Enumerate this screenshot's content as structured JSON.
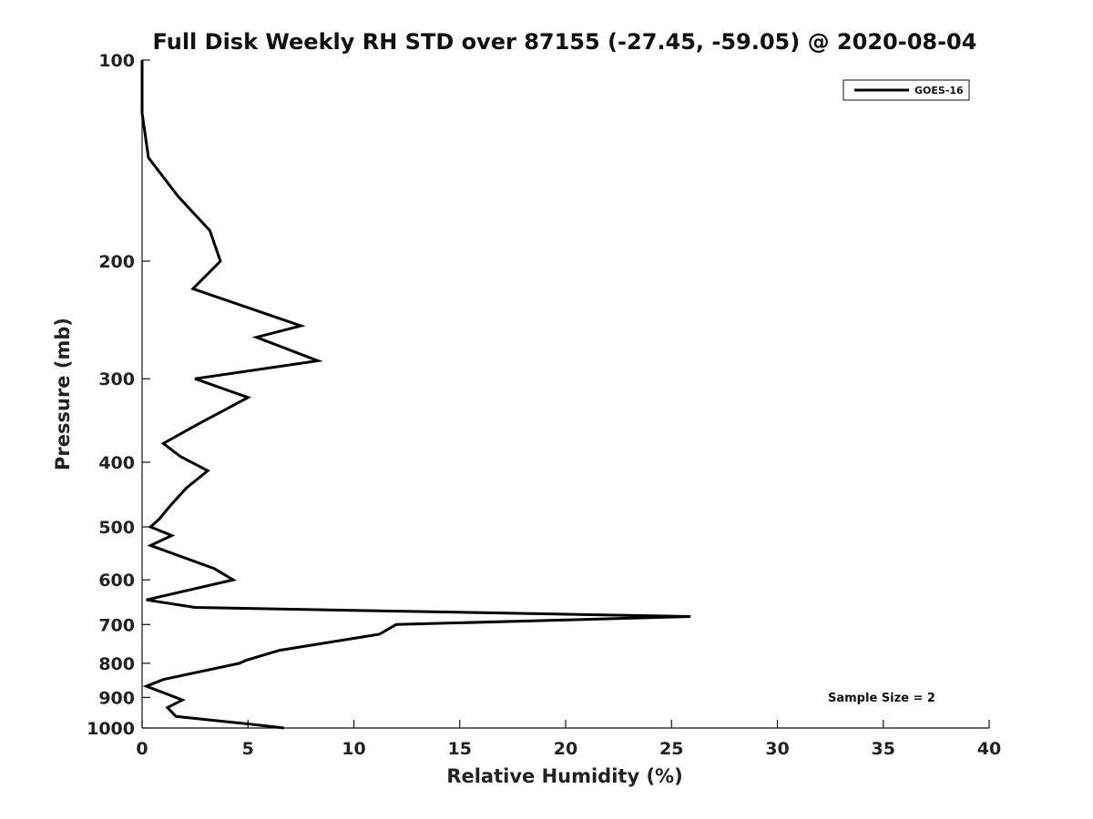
{
  "chart_data": {
    "type": "line",
    "title": "Full Disk Weekly RH STD over 87155 (-27.45, -59.05) @ 2020-08-04",
    "xlabel": "Relative Humidity (%)",
    "ylabel": "Pressure (mb)",
    "xlim": [
      0,
      40
    ],
    "ylim": [
      100,
      1000
    ],
    "yscale": "log",
    "y_reversed": true,
    "xticks": [
      0,
      5,
      10,
      15,
      20,
      25,
      30,
      35,
      40
    ],
    "yticks": [
      100,
      200,
      300,
      400,
      500,
      600,
      700,
      800,
      900,
      1000
    ],
    "grid": false,
    "legend_position": "top-right",
    "annotation": "Sample Size = 2",
    "series": [
      {
        "name": "GOES-16",
        "color": "#000000",
        "points": [
          [
            0.0,
            100
          ],
          [
            0.0,
            120
          ],
          [
            0.3,
            140
          ],
          [
            1.7,
            160
          ],
          [
            3.2,
            180
          ],
          [
            3.7,
            200
          ],
          [
            2.4,
            220
          ],
          [
            7.5,
            250
          ],
          [
            5.4,
            260
          ],
          [
            8.3,
            282
          ],
          [
            2.5,
            300
          ],
          [
            5.0,
            320
          ],
          [
            2.7,
            350
          ],
          [
            1.0,
            375
          ],
          [
            1.8,
            392
          ],
          [
            3.1,
            412
          ],
          [
            2.1,
            437
          ],
          [
            1.4,
            462
          ],
          [
            0.8,
            487
          ],
          [
            0.4,
            500
          ],
          [
            1.4,
            515
          ],
          [
            0.4,
            533
          ],
          [
            3.4,
            577
          ],
          [
            4.3,
            600
          ],
          [
            0.2,
            643
          ],
          [
            2.5,
            660
          ],
          [
            25.9,
            681
          ],
          [
            12.0,
            700
          ],
          [
            11.2,
            724
          ],
          [
            6.5,
            765
          ],
          [
            4.9,
            792
          ],
          [
            4.6,
            800
          ],
          [
            1.0,
            846
          ],
          [
            0.2,
            866
          ],
          [
            1.0,
            885
          ],
          [
            1.9,
            908
          ],
          [
            1.2,
            932
          ],
          [
            1.6,
            961
          ],
          [
            5.0,
            986
          ],
          [
            6.7,
            1000
          ]
        ]
      }
    ]
  }
}
